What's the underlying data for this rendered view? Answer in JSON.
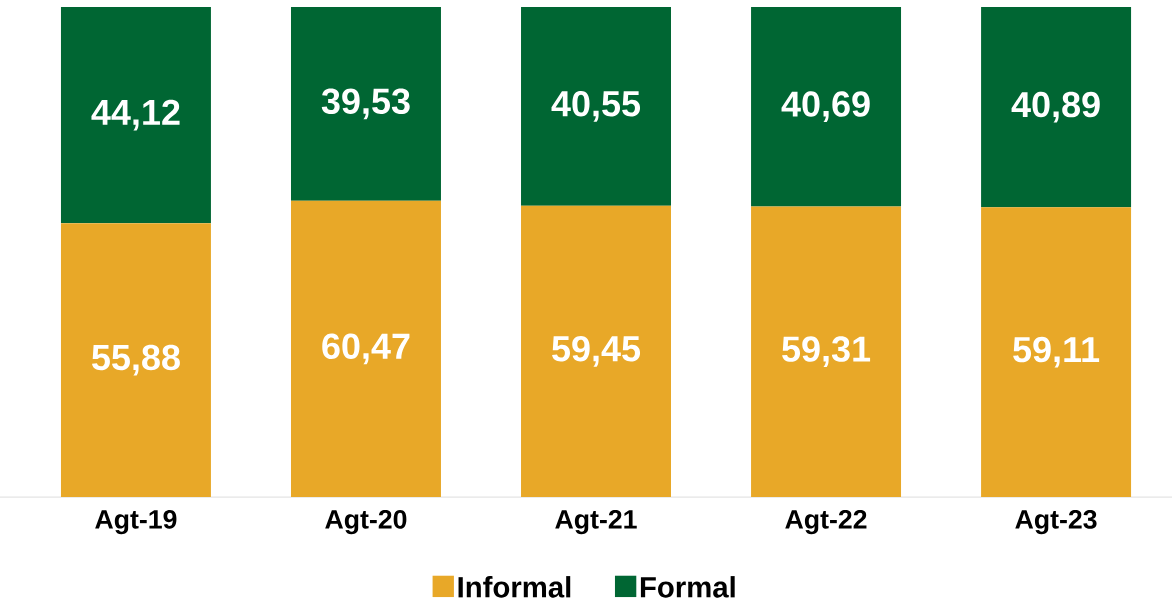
{
  "chart_data": {
    "type": "bar",
    "stacked": true,
    "categories": [
      "Agt-19",
      "Agt-20",
      "Agt-21",
      "Agt-22",
      "Agt-23"
    ],
    "legend": "bottom",
    "series": [
      {
        "name": "Informal",
        "color": "#e8a828",
        "values": [
          55.88,
          60.47,
          59.45,
          59.31,
          59.11
        ],
        "value_labels": [
          "55,88",
          "60,47",
          "59,45",
          "59,31",
          "59,11"
        ]
      },
      {
        "name": "Formal",
        "color": "#006633",
        "values": [
          44.12,
          39.53,
          40.55,
          40.69,
          40.89
        ],
        "value_labels": [
          "44,12",
          "39,53",
          "40,55",
          "40,69",
          "40,89"
        ]
      }
    ]
  }
}
